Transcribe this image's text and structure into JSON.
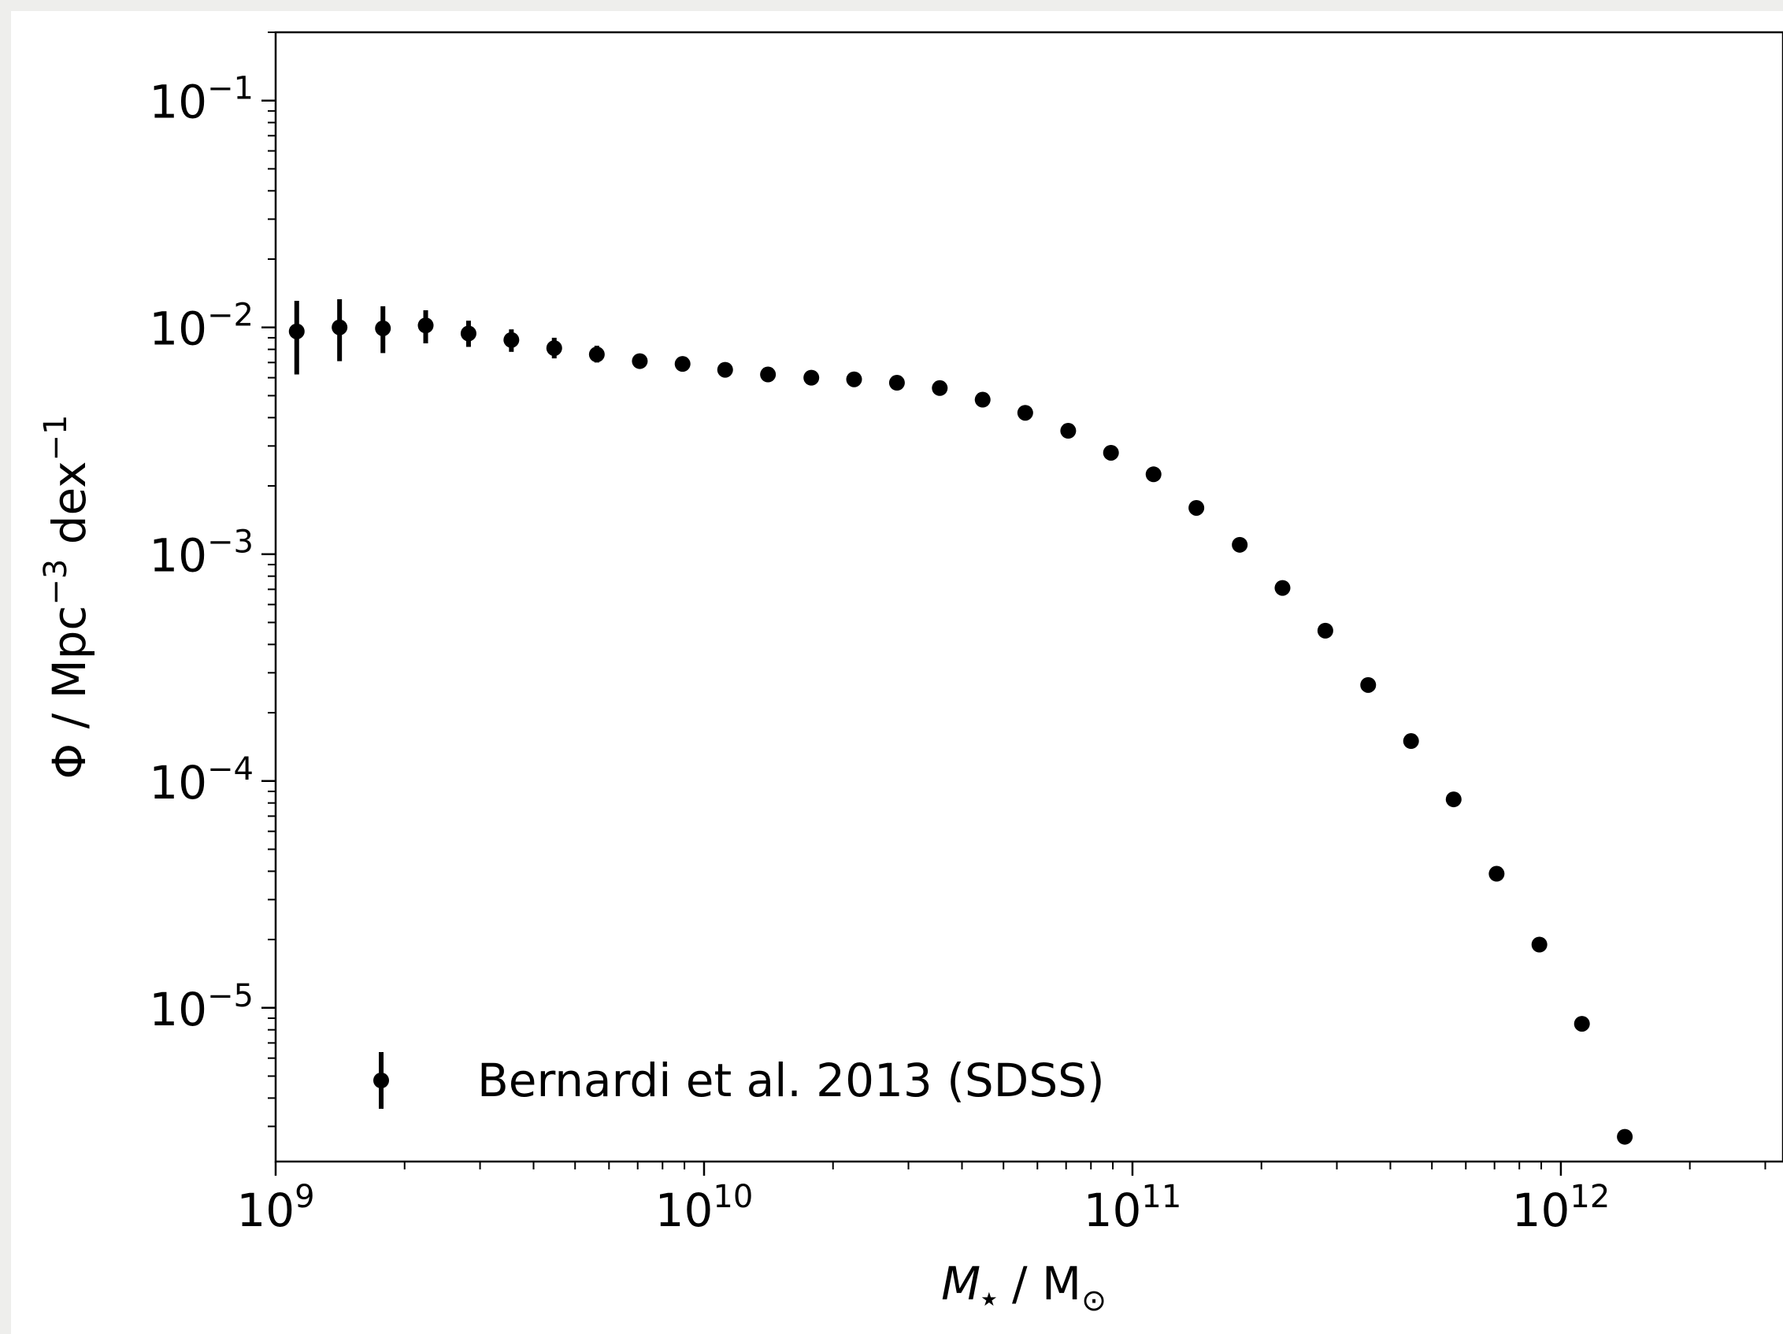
{
  "chart_data": {
    "type": "scatter",
    "x_scale": "log",
    "y_scale": "log",
    "xlim": [
      1000000000.0,
      3300000000000.0
    ],
    "ylim": [
      2.1e-06,
      0.2
    ],
    "xlabel": {
      "main": "M",
      "sub": "★",
      "sep": " / ",
      "unit": "M",
      "unit_sub": "⊙"
    },
    "ylabel": {
      "main": "Φ",
      "sep": " / ",
      "unit1": "Mpc",
      "exp1": "−3",
      "unit2": " dex",
      "exp2": "−1"
    },
    "x_ticks": [
      {
        "value": 1000000000.0,
        "base": "10",
        "exp": "9"
      },
      {
        "value": 10000000000.0,
        "base": "10",
        "exp": "10"
      },
      {
        "value": 100000000000.0,
        "base": "10",
        "exp": "11"
      },
      {
        "value": 1000000000000.0,
        "base": "10",
        "exp": "12"
      }
    ],
    "y_ticks": [
      {
        "value": 0.1,
        "base": "10",
        "exp": "−1"
      },
      {
        "value": 0.01,
        "base": "10",
        "exp": "−2"
      },
      {
        "value": 0.001,
        "base": "10",
        "exp": "−3"
      },
      {
        "value": 0.0001,
        "base": "10",
        "exp": "−4"
      },
      {
        "value": 1e-05,
        "base": "10",
        "exp": "−5"
      }
    ],
    "legend": {
      "label": "Bernardi et al. 2013 (SDSS)",
      "placement": "lower-left"
    },
    "series": [
      {
        "name": "Bernardi et al. 2013 (SDSS)",
        "color": "#000000",
        "points": [
          {
            "x": 1120000000.0,
            "y": 0.0096,
            "ylo": 0.0062,
            "yhi": 0.0131
          },
          {
            "x": 1410000000.0,
            "y": 0.01,
            "ylo": 0.0071,
            "yhi": 0.0133
          },
          {
            "x": 1780000000.0,
            "y": 0.0099,
            "ylo": 0.0077,
            "yhi": 0.0124
          },
          {
            "x": 2240000000.0,
            "y": 0.0102,
            "ylo": 0.0085,
            "yhi": 0.0119
          },
          {
            "x": 2820000000.0,
            "y": 0.0094,
            "ylo": 0.0082,
            "yhi": 0.0107
          },
          {
            "x": 3550000000.0,
            "y": 0.0088,
            "ylo": 0.0078,
            "yhi": 0.0098
          },
          {
            "x": 4470000000.0,
            "y": 0.0081,
            "ylo": 0.0073,
            "yhi": 0.009
          },
          {
            "x": 5620000000.0,
            "y": 0.0076,
            "ylo": 0.007,
            "yhi": 0.0083
          },
          {
            "x": 7080000000.0,
            "y": 0.0071,
            "ylo": 0.0067,
            "yhi": 0.0075
          },
          {
            "x": 8910000000.0,
            "y": 0.0069
          },
          {
            "x": 11200000000.0,
            "y": 0.0065
          },
          {
            "x": 14100000000.0,
            "y": 0.0062
          },
          {
            "x": 17800000000.0,
            "y": 0.006
          },
          {
            "x": 22400000000.0,
            "y": 0.0059
          },
          {
            "x": 28200000000.0,
            "y": 0.0057
          },
          {
            "x": 35500000000.0,
            "y": 0.0054
          },
          {
            "x": 44700000000.0,
            "y": 0.0048
          },
          {
            "x": 56200000000.0,
            "y": 0.0042
          },
          {
            "x": 70800000000.0,
            "y": 0.0035
          },
          {
            "x": 89100000000.0,
            "y": 0.0028
          },
          {
            "x": 112000000000.0,
            "y": 0.00225
          },
          {
            "x": 141000000000.0,
            "y": 0.0016
          },
          {
            "x": 178000000000.0,
            "y": 0.0011
          },
          {
            "x": 224000000000.0,
            "y": 0.00071
          },
          {
            "x": 282000000000.0,
            "y": 0.00046
          },
          {
            "x": 355000000000.0,
            "y": 0.000265
          },
          {
            "x": 447000000000.0,
            "y": 0.00015
          },
          {
            "x": 562000000000.0,
            "y": 8.3e-05
          },
          {
            "x": 708000000000.0,
            "y": 3.9e-05
          },
          {
            "x": 891000000000.0,
            "y": 1.9e-05
          },
          {
            "x": 1120000000000.0,
            "y": 8.5e-06
          },
          {
            "x": 1410000000000.0,
            "y": 2.7e-06
          }
        ]
      }
    ]
  }
}
